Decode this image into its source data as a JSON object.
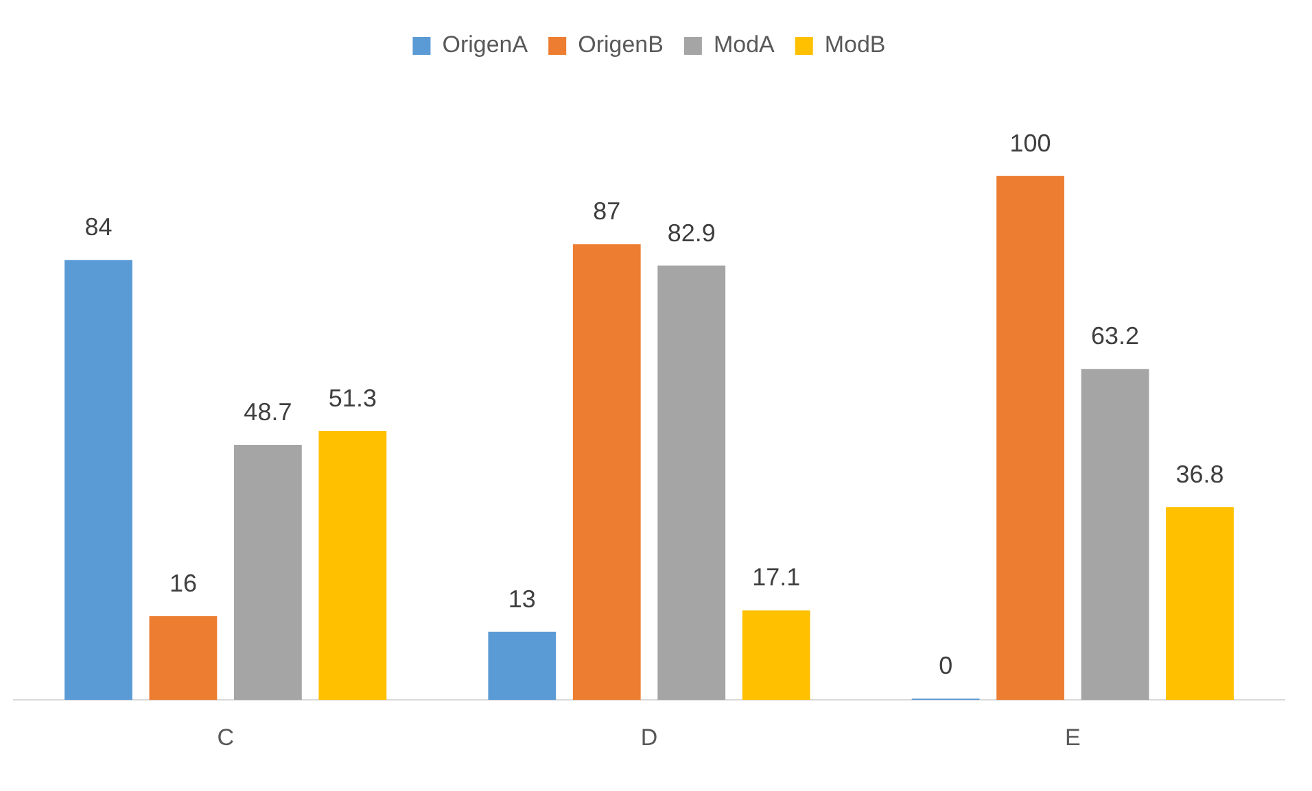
{
  "chart_data": {
    "type": "bar",
    "categories": [
      "C",
      "D",
      "E"
    ],
    "series": [
      {
        "name": "OrigenA",
        "color": "#5b9bd5",
        "values": [
          84,
          13,
          0
        ]
      },
      {
        "name": "OrigenB",
        "color": "#ed7d31",
        "values": [
          16,
          87,
          100
        ]
      },
      {
        "name": "ModA",
        "color": "#a5a5a5",
        "values": [
          48.7,
          82.9,
          63.2
        ]
      },
      {
        "name": "ModB",
        "color": "#ffc000",
        "values": [
          51.3,
          17.1,
          36.8
        ]
      }
    ],
    "data_labels": true,
    "legend": "top",
    "grid": false,
    "tick_labels": "x"
  }
}
